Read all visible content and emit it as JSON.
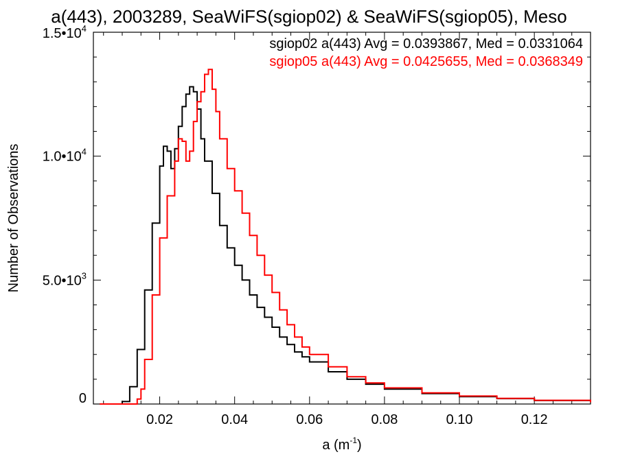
{
  "chart_data": {
    "type": "line",
    "step": true,
    "title": "a(443), 2003289, SeaWiFS(sgiop02) & SeaWiFS(sgiop05), Meso",
    "xlabel": "a (m",
    "xlabel_sup": "-1",
    "xlabel_end": ")",
    "ylabel": "Number of Observations",
    "xlim": [
      0.0023,
      0.135
    ],
    "ylim": [
      0,
      15000
    ],
    "xticks": [
      {
        "value": 0.02,
        "label": "0.02"
      },
      {
        "value": 0.04,
        "label": "0.04"
      },
      {
        "value": 0.06,
        "label": "0.06"
      },
      {
        "value": 0.08,
        "label": "0.08"
      },
      {
        "value": 0.1,
        "label": "0.10"
      },
      {
        "value": 0.12,
        "label": "0.12"
      }
    ],
    "yticks": [
      {
        "value": 0,
        "mant": "0",
        "exp": ""
      },
      {
        "value": 5000,
        "mant": "5.0•10",
        "exp": "3"
      },
      {
        "value": 10000,
        "mant": "1.0•10",
        "exp": "4"
      },
      {
        "value": 15000,
        "mant": "1.5•10",
        "exp": "4"
      }
    ],
    "legend_position": "top-right",
    "grid": false,
    "series": [
      {
        "name": "sgiop02 a(443) Avg = 0.0393867, Med = 0.0331064",
        "color": "#000000",
        "x": [
          0.004,
          0.008,
          0.01,
          0.012,
          0.014,
          0.016,
          0.018,
          0.02,
          0.021,
          0.022,
          0.023,
          0.024,
          0.025,
          0.026,
          0.027,
          0.028,
          0.029,
          0.03,
          0.031,
          0.032,
          0.034,
          0.036,
          0.038,
          0.04,
          0.042,
          0.044,
          0.046,
          0.048,
          0.05,
          0.052,
          0.054,
          0.056,
          0.058,
          0.06,
          0.065,
          0.07,
          0.075,
          0.08,
          0.09,
          0.1,
          0.11,
          0.12,
          0.135
        ],
        "values": [
          0,
          0,
          100,
          700,
          2200,
          4600,
          7300,
          9600,
          10400,
          10200,
          9500,
          10300,
          11200,
          12000,
          12500,
          12800,
          12600,
          11900,
          10700,
          9800,
          8500,
          7200,
          6300,
          5600,
          5000,
          4400,
          3900,
          3500,
          3100,
          2700,
          2400,
          2100,
          1900,
          1700,
          1300,
          1000,
          800,
          600,
          420,
          300,
          220,
          140,
          70
        ]
      },
      {
        "name": "sgiop05 a(443) Avg = 0.0425655, Med = 0.0368349",
        "color": "#ff0000",
        "x": [
          0.004,
          0.012,
          0.014,
          0.015,
          0.016,
          0.018,
          0.02,
          0.022,
          0.024,
          0.025,
          0.026,
          0.027,
          0.028,
          0.029,
          0.03,
          0.031,
          0.032,
          0.033,
          0.034,
          0.035,
          0.036,
          0.038,
          0.04,
          0.042,
          0.044,
          0.046,
          0.048,
          0.05,
          0.052,
          0.054,
          0.056,
          0.058,
          0.06,
          0.065,
          0.07,
          0.075,
          0.08,
          0.09,
          0.1,
          0.11,
          0.12,
          0.135
        ],
        "values": [
          0,
          0,
          200,
          600,
          1800,
          4400,
          6700,
          8400,
          9800,
          10700,
          10600,
          9800,
          10200,
          11400,
          12200,
          12600,
          13300,
          13500,
          12700,
          11800,
          10700,
          9500,
          8600,
          7700,
          6800,
          6000,
          5200,
          4500,
          3800,
          3200,
          2700,
          2300,
          2000,
          1500,
          1100,
          850,
          650,
          450,
          320,
          230,
          150,
          70
        ]
      }
    ]
  }
}
